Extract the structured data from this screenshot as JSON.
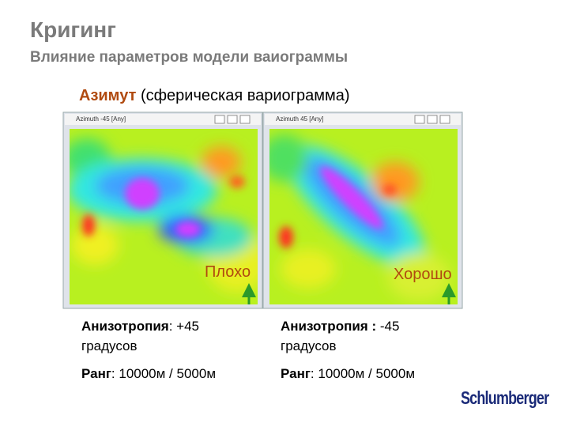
{
  "header": {
    "title": "Кригинг",
    "subtitle": "Влияние параметров модели ваиограммы"
  },
  "caption": {
    "keyword": "Азимут",
    "rest": "(сферическая вариограмма)"
  },
  "panels": [
    {
      "window_title": "Azimuth -45 [Any]",
      "verdict": "Плохо",
      "anisotropy": {
        "label": "Анизотропия",
        "value": ": +45",
        "unit": "градусов"
      },
      "range": {
        "label": "Ранг",
        "value": ": 10000м / 5000м"
      }
    },
    {
      "window_title": "Azimuth 45 [Any]",
      "verdict": "Хорошо",
      "anisotropy": {
        "label": "Анизотропия :",
        "value": "-45",
        "unit": "градусов"
      },
      "range": {
        "label": "Ранг",
        "value": ": 10000м / 5000м"
      }
    }
  ],
  "logo": "Schlumberger"
}
